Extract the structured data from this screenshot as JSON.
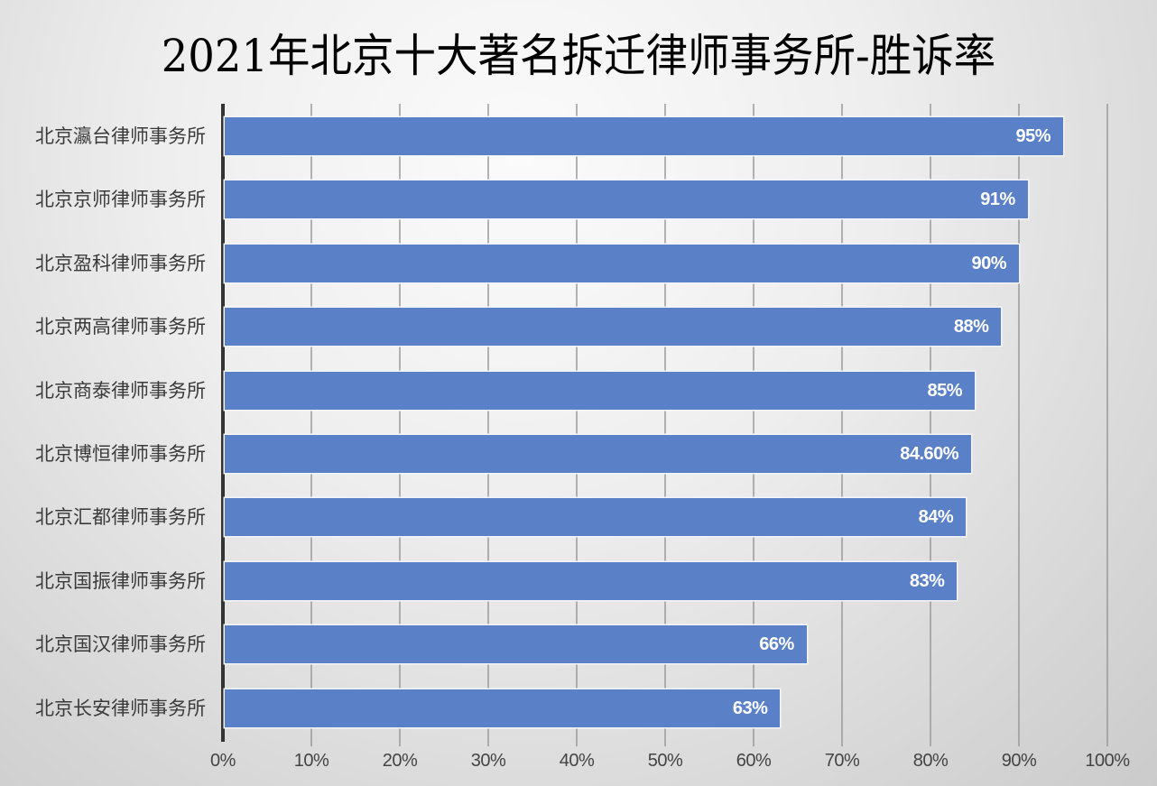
{
  "title": "2021年北京十大著名拆迁律师事务所-胜诉率",
  "axis": {
    "ticks": [
      "0%",
      "10%",
      "20%",
      "30%",
      "40%",
      "50%",
      "60%",
      "70%",
      "80%",
      "90%",
      "100%"
    ]
  },
  "bars": [
    {
      "category": "北京瀛台律师事务所",
      "value": 95,
      "label": "95%"
    },
    {
      "category": "北京京师律师事务所",
      "value": 91,
      "label": "91%"
    },
    {
      "category": "北京盈科律师事务所",
      "value": 90,
      "label": "90%"
    },
    {
      "category": "北京两高律师事务所",
      "value": 88,
      "label": "88%"
    },
    {
      "category": "北京商泰律师事务所",
      "value": 85,
      "label": "85%"
    },
    {
      "category": "北京博恒律师事务所",
      "value": 84.6,
      "label": "84.60%"
    },
    {
      "category": "北京汇都律师事务所",
      "value": 84,
      "label": "84%"
    },
    {
      "category": "北京国振律师事务所",
      "value": 83,
      "label": "83%"
    },
    {
      "category": "北京国汉律师事务所",
      "value": 66,
      "label": "66%"
    },
    {
      "category": "北京长安律师事务所",
      "value": 63,
      "label": "63%"
    }
  ],
  "colors": {
    "bar": "#5a80c8",
    "bar_label": "#ffffff",
    "axis": "#333333",
    "grid": "#9a9a9a"
  },
  "chart_data": {
    "type": "bar",
    "orientation": "horizontal",
    "title": "2021年北京十大著名拆迁律师事务所-胜诉率",
    "xlabel": "",
    "ylabel": "",
    "categories": [
      "北京瀛台律师事务所",
      "北京京师律师事务所",
      "北京盈科律师事务所",
      "北京两高律师事务所",
      "北京商泰律师事务所",
      "北京博恒律师事务所",
      "北京汇都律师事务所",
      "北京国振律师事务所",
      "北京国汉律师事务所",
      "北京长安律师事务所"
    ],
    "values": [
      95,
      91,
      90,
      88,
      85,
      84.6,
      84,
      83,
      66,
      63
    ],
    "data_labels": [
      "95%",
      "91%",
      "90%",
      "88%",
      "85%",
      "84.60%",
      "84%",
      "83%",
      "66%",
      "63%"
    ],
    "xlim": [
      0,
      100
    ],
    "x_ticks": [
      "0%",
      "10%",
      "20%",
      "30%",
      "40%",
      "50%",
      "60%",
      "70%",
      "80%",
      "90%",
      "100%"
    ],
    "grid": "vertical",
    "legend": "none"
  }
}
